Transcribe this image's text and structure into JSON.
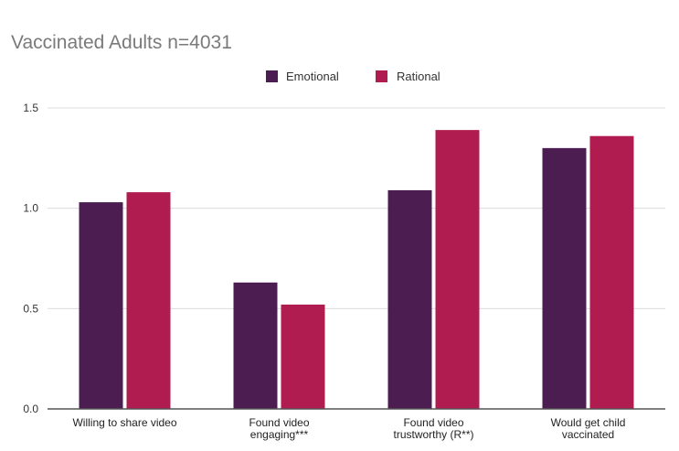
{
  "colors": {
    "emotional": "#4b1d50",
    "rational": "#b01c50"
  },
  "chart_data": {
    "type": "bar",
    "title": "Vaccinated Adults n=4031",
    "xlabel": "",
    "ylabel": "",
    "ylim": [
      0,
      1.5
    ],
    "yticks": [
      "0.0",
      "0.5",
      "1.0",
      "1.5"
    ],
    "yticks_values": [
      0,
      0.5,
      1.0,
      1.5
    ],
    "grid": true,
    "legend_position": "top-center",
    "categories": [
      [
        "Willing to share video"
      ],
      [
        "Found video",
        "engaging***"
      ],
      [
        "Found video",
        "trustworthy (R**)"
      ],
      [
        "Would get child",
        "vaccinated"
      ]
    ],
    "series": [
      {
        "name": "Emotional",
        "color_key": "emotional",
        "values": [
          1.03,
          0.63,
          1.09,
          1.3
        ]
      },
      {
        "name": "Rational",
        "color_key": "rational",
        "values": [
          1.08,
          0.52,
          1.39,
          1.36
        ]
      }
    ]
  }
}
